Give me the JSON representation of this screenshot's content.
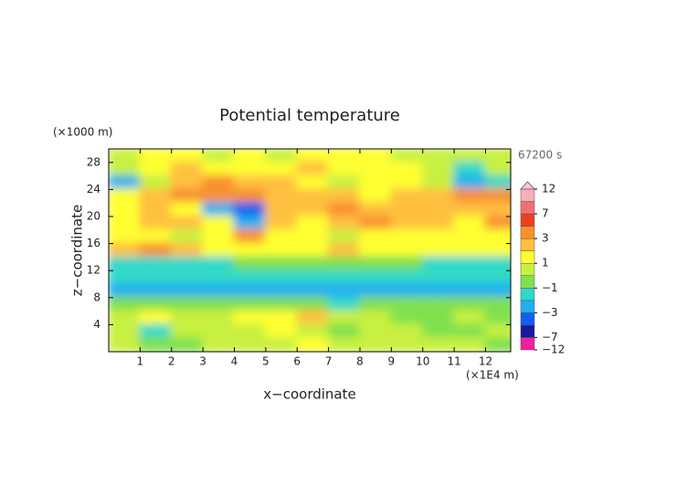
{
  "chart_data": {
    "type": "contour",
    "title": "Potential temperature",
    "y_unit": "(×1000 m)",
    "time_label": "67200 s",
    "x_unit": "(×1E4 m)",
    "xlabel": "x−coordinate",
    "ylabel": "z−coordinate",
    "xlim": [
      0,
      12.8
    ],
    "ylim": [
      0,
      30
    ],
    "xticks": [
      1,
      2,
      3,
      4,
      5,
      6,
      7,
      8,
      9,
      10,
      11,
      12
    ],
    "yticks": [
      4,
      8,
      12,
      16,
      20,
      24,
      28
    ],
    "field": {
      "x": [
        0.5,
        1.5,
        2.5,
        3.5,
        4.5,
        5.5,
        6.5,
        7.5,
        8.5,
        9.5,
        10.5,
        11.5,
        12.5
      ],
      "z": [
        29,
        27,
        25,
        23,
        21,
        19,
        17,
        15,
        13,
        11,
        9,
        7,
        5,
        3,
        1
      ],
      "values": [
        [
          0.5,
          1.5,
          1.5,
          0.5,
          1.5,
          0.5,
          1.5,
          1.5,
          1.5,
          0.5,
          0.5,
          0.5,
          0.5
        ],
        [
          0.5,
          1.5,
          2.5,
          1.5,
          1.5,
          1.5,
          2.5,
          1.5,
          1.5,
          1.5,
          0.5,
          -1.5,
          0.5
        ],
        [
          -2.5,
          0.5,
          2.5,
          4,
          2.5,
          2.5,
          1.5,
          0.5,
          1.5,
          1.5,
          0.5,
          -2.5,
          -1.5
        ],
        [
          1.5,
          2.5,
          4,
          4,
          4,
          2.5,
          2.5,
          2.5,
          1.5,
          2.5,
          2.5,
          4,
          4
        ],
        [
          1.5,
          2.5,
          1.5,
          -2.5,
          -4,
          2.5,
          2.5,
          4,
          2.5,
          2.5,
          2.5,
          2.5,
          2.5
        ],
        [
          1.5,
          2.5,
          2.5,
          1.5,
          -2.5,
          2.5,
          1.5,
          2.5,
          4,
          2.5,
          2.5,
          1.5,
          4
        ],
        [
          1.5,
          1.5,
          0.5,
          1.5,
          4,
          1.5,
          1.5,
          0.5,
          1.5,
          1.5,
          1.5,
          1.5,
          1.5
        ],
        [
          2.5,
          4,
          2.5,
          1.5,
          1.5,
          1.5,
          1.5,
          2.5,
          1.5,
          1.5,
          1.5,
          1.5,
          1.5
        ],
        [
          -1.5,
          -1.5,
          -1.5,
          -1.5,
          -0.5,
          -0.5,
          -0.5,
          -0.5,
          -0.5,
          -0.5,
          -1.5,
          -1.5,
          -1.5
        ],
        [
          -1.5,
          -1.5,
          -1.5,
          -1.5,
          -1.5,
          -1.5,
          -1.5,
          -1.5,
          -1.5,
          -1.5,
          -1.5,
          -1.5,
          -1.5
        ],
        [
          -2.5,
          -2.5,
          -2.5,
          -2.5,
          -2.5,
          -2.5,
          -2.5,
          -2.5,
          -2.5,
          -2.5,
          -2.5,
          -2.5,
          -2.5
        ],
        [
          -0.5,
          -0.5,
          -0.5,
          -0.5,
          -0.5,
          -0.5,
          -0.5,
          -1.5,
          -0.5,
          -0.5,
          -0.5,
          -0.5,
          -0.5
        ],
        [
          0.5,
          1.5,
          0.5,
          0.5,
          1.5,
          1.5,
          2.5,
          0.5,
          0.5,
          -0.5,
          -0.5,
          0.5,
          -0.5
        ],
        [
          0.5,
          -1.5,
          0.5,
          0.5,
          0.5,
          1.5,
          0.5,
          -0.5,
          0.5,
          0.5,
          -0.5,
          -0.5,
          0.5
        ],
        [
          0.5,
          -0.5,
          -0.5,
          0.5,
          0.5,
          0.5,
          1.5,
          0.5,
          0.5,
          0.5,
          0.5,
          0.5,
          -0.5
        ]
      ]
    },
    "colorbar": {
      "levels": [
        -12,
        -7,
        -5,
        -3,
        -2,
        -1,
        0,
        1,
        2,
        3,
        5,
        7,
        9,
        12
      ],
      "colors": [
        "#f020a0",
        "#1818a0",
        "#1060f0",
        "#20b0f0",
        "#30d8c8",
        "#80e050",
        "#c8f040",
        "#ffff30",
        "#ffc040",
        "#f89030",
        "#f04020",
        "#f07070",
        "#f8b0b8"
      ],
      "over_color": "#f8c8d0",
      "ticks": [
        12,
        7,
        3,
        1,
        {
          "value": -1,
          "label": "−1"
        },
        {
          "value": -3,
          "label": "−3"
        },
        {
          "value": -7,
          "label": "−7"
        },
        {
          "value": -12,
          "label": "−12"
        }
      ]
    }
  }
}
